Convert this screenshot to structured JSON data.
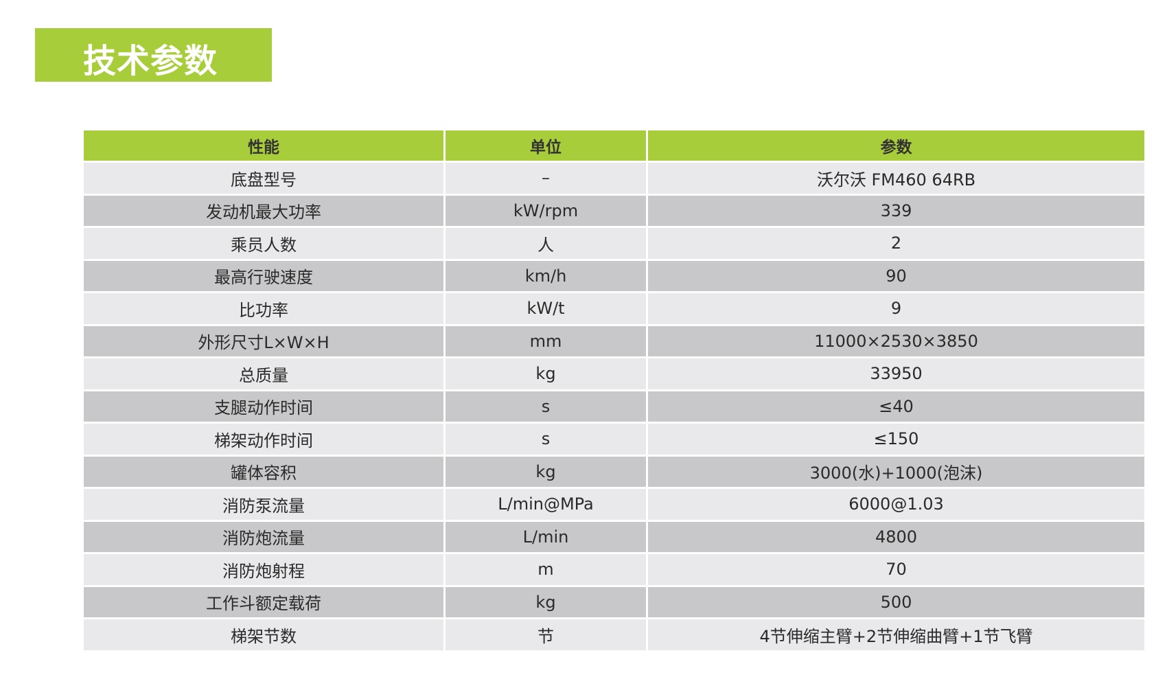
{
  "accent_color": "#a8cd3a",
  "title": "技术参数",
  "table": {
    "headers": [
      "性能",
      "单位",
      "参数"
    ],
    "rows": [
      [
        "底盘型号",
        "–",
        "沃尔沃 FM460 64RB"
      ],
      [
        "发动机最大功率",
        "kW/rpm",
        "339"
      ],
      [
        "乘员人数",
        "人",
        "2"
      ],
      [
        "最高行驶速度",
        "km/h",
        "90"
      ],
      [
        "比功率",
        "kW/t",
        "9"
      ],
      [
        "外形尺寸L×W×H",
        "mm",
        "11000×2530×3850"
      ],
      [
        "总质量",
        "kg",
        "33950"
      ],
      [
        "支腿动作时间",
        "s",
        "≤40"
      ],
      [
        "梯架动作时间",
        "s",
        "≤150"
      ],
      [
        "罐体容积",
        "kg",
        "3000(水)+1000(泡沫)"
      ],
      [
        "消防泵流量",
        "L/min@MPa",
        "6000@1.03"
      ],
      [
        "消防炮流量",
        "L/min",
        "4800"
      ],
      [
        "消防炮射程",
        "m",
        "70"
      ],
      [
        "工作斗额定载荷",
        "kg",
        "500"
      ],
      [
        "梯架节数",
        "节",
        "4节伸缩主臂+2节伸缩曲臂+1节飞臂"
      ]
    ]
  }
}
